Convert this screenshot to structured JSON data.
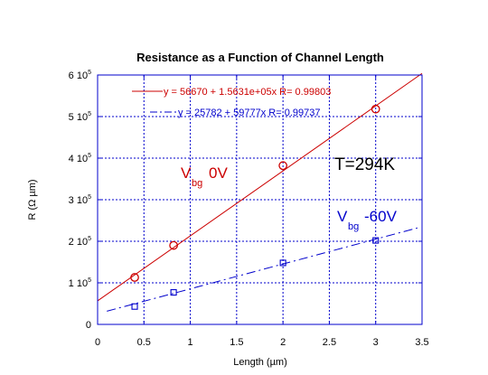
{
  "chart_data": {
    "type": "scatter",
    "title": "Resistance as a Function of Channel Length",
    "xlabel": "Length (µm)",
    "ylabel": "R (Ω µm)",
    "xlim": [
      0,
      3.5
    ],
    "ylim": [
      0,
      600000
    ],
    "x_ticks": [
      {
        "value": 0,
        "label": "0"
      },
      {
        "value": 0.5,
        "label": "0.5"
      },
      {
        "value": 1,
        "label": "1"
      },
      {
        "value": 1.5,
        "label": "1.5"
      },
      {
        "value": 2,
        "label": "2"
      },
      {
        "value": 2.5,
        "label": "2.5"
      },
      {
        "value": 3,
        "label": "3"
      },
      {
        "value": 3.5,
        "label": "3.5"
      }
    ],
    "y_ticks": [
      {
        "value": 0,
        "mantissa": "0",
        "exp": ""
      },
      {
        "value": 100000,
        "mantissa": "1 10",
        "exp": "5"
      },
      {
        "value": 200000,
        "mantissa": "2 10",
        "exp": "5"
      },
      {
        "value": 300000,
        "mantissa": "3 10",
        "exp": "5"
      },
      {
        "value": 400000,
        "mantissa": "4 10",
        "exp": "5"
      },
      {
        "value": 500000,
        "mantissa": "5 10",
        "exp": "5"
      },
      {
        "value": 600000,
        "mantissa": "6 10",
        "exp": "5"
      }
    ],
    "grid": true,
    "legend_position": "top-left",
    "series": [
      {
        "id": "vbg0",
        "color": "#cc0000",
        "marker": "circle",
        "line_style": "solid",
        "x": [
          0.4,
          0.82,
          2.0,
          3.0
        ],
        "y": [
          113000,
          190000,
          382000,
          518000
        ],
        "fit": {
          "intercept": 56670,
          "slope": 156310,
          "x_range": [
            0,
            3.5
          ]
        },
        "legend": "y = 56670 + 1.5631e+05x   R= 0.99803"
      },
      {
        "id": "vbg-60",
        "color": "#0000cc",
        "marker": "square",
        "line_style": "dashdot",
        "x": [
          0.4,
          0.82,
          2.0,
          3.0
        ],
        "y": [
          43000,
          77000,
          148000,
          202000
        ],
        "fit": {
          "intercept": 25782,
          "slope": 59777,
          "x_range": [
            0.1,
            3.45
          ]
        },
        "legend": "y = 25782 + 59777x   R= 0.99737"
      }
    ],
    "annotations": [
      {
        "id": "vbg0-label",
        "main": "V",
        "sub": "bg",
        "suffix": "0V",
        "color": "#cc0000"
      },
      {
        "id": "vbg-60-label",
        "main": "V",
        "sub": "bg",
        "suffix": "-60V",
        "color": "#0000cc"
      },
      {
        "id": "temperature-label",
        "text": "T=294K",
        "color": "#000000"
      }
    ]
  }
}
